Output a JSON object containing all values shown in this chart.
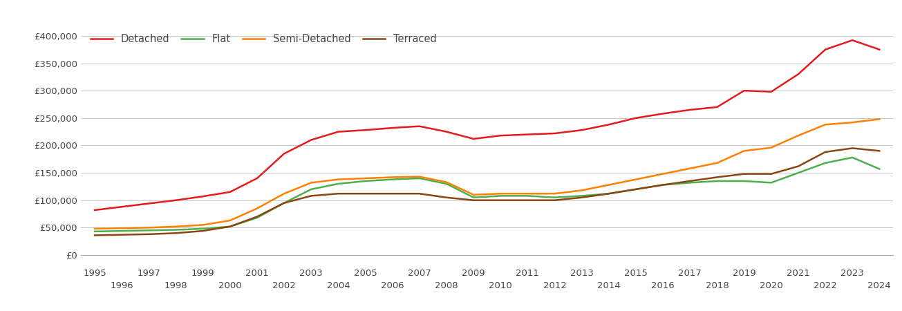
{
  "series": {
    "Detached": {
      "color": "#e41a1c",
      "years": [
        1995,
        1996,
        1997,
        1998,
        1999,
        2000,
        2001,
        2002,
        2003,
        2004,
        2005,
        2006,
        2007,
        2008,
        2009,
        2010,
        2011,
        2012,
        2013,
        2014,
        2015,
        2016,
        2017,
        2018,
        2019,
        2020,
        2021,
        2022,
        2023,
        2024
      ],
      "values": [
        82000,
        88000,
        94000,
        100000,
        107000,
        115000,
        140000,
        185000,
        210000,
        225000,
        228000,
        232000,
        235000,
        225000,
        212000,
        218000,
        220000,
        222000,
        228000,
        238000,
        250000,
        258000,
        265000,
        270000,
        300000,
        298000,
        330000,
        375000,
        392000,
        375000
      ]
    },
    "Flat": {
      "color": "#4daf4a",
      "years": [
        1995,
        1996,
        1997,
        1998,
        1999,
        2000,
        2001,
        2002,
        2003,
        2004,
        2005,
        2006,
        2007,
        2008,
        2009,
        2010,
        2011,
        2012,
        2013,
        2014,
        2015,
        2016,
        2017,
        2018,
        2019,
        2020,
        2021,
        2022,
        2023,
        2024
      ],
      "values": [
        43000,
        44000,
        45000,
        46000,
        48000,
        52000,
        68000,
        95000,
        120000,
        130000,
        135000,
        138000,
        140000,
        130000,
        105000,
        108000,
        108000,
        105000,
        108000,
        112000,
        120000,
        128000,
        132000,
        135000,
        135000,
        132000,
        150000,
        168000,
        178000,
        157000
      ]
    },
    "Semi-Detached": {
      "color": "#ff7f00",
      "years": [
        1995,
        1996,
        1997,
        1998,
        1999,
        2000,
        2001,
        2002,
        2003,
        2004,
        2005,
        2006,
        2007,
        2008,
        2009,
        2010,
        2011,
        2012,
        2013,
        2014,
        2015,
        2016,
        2017,
        2018,
        2019,
        2020,
        2021,
        2022,
        2023,
        2024
      ],
      "values": [
        48000,
        49000,
        50000,
        52000,
        55000,
        63000,
        85000,
        112000,
        132000,
        138000,
        140000,
        142000,
        143000,
        133000,
        110000,
        112000,
        112000,
        112000,
        118000,
        128000,
        138000,
        148000,
        158000,
        168000,
        190000,
        196000,
        218000,
        238000,
        242000,
        248000
      ]
    },
    "Terraced": {
      "color": "#8b4513",
      "years": [
        1995,
        1996,
        1997,
        1998,
        1999,
        2000,
        2001,
        2002,
        2003,
        2004,
        2005,
        2006,
        2007,
        2008,
        2009,
        2010,
        2011,
        2012,
        2013,
        2014,
        2015,
        2016,
        2017,
        2018,
        2019,
        2020,
        2021,
        2022,
        2023,
        2024
      ],
      "values": [
        36000,
        37000,
        38000,
        40000,
        44000,
        52000,
        70000,
        95000,
        108000,
        112000,
        112000,
        112000,
        112000,
        105000,
        100000,
        100000,
        100000,
        100000,
        105000,
        112000,
        120000,
        128000,
        135000,
        142000,
        148000,
        148000,
        162000,
        188000,
        195000,
        190000
      ]
    }
  },
  "ylim": [
    0,
    420000
  ],
  "yticks": [
    0,
    50000,
    100000,
    150000,
    200000,
    250000,
    300000,
    350000,
    400000
  ],
  "xlim": [
    1994.5,
    2024.5
  ],
  "background_color": "#ffffff",
  "grid_color": "#cccccc",
  "odd_years": [
    1995,
    1997,
    1999,
    2001,
    2003,
    2005,
    2007,
    2009,
    2011,
    2013,
    2015,
    2017,
    2019,
    2021,
    2023
  ],
  "even_years": [
    1996,
    1998,
    2000,
    2002,
    2004,
    2006,
    2008,
    2010,
    2012,
    2014,
    2016,
    2018,
    2020,
    2022,
    2024
  ],
  "tick_fontsize": 9.5,
  "label_color": "#444444",
  "line_width": 1.8
}
